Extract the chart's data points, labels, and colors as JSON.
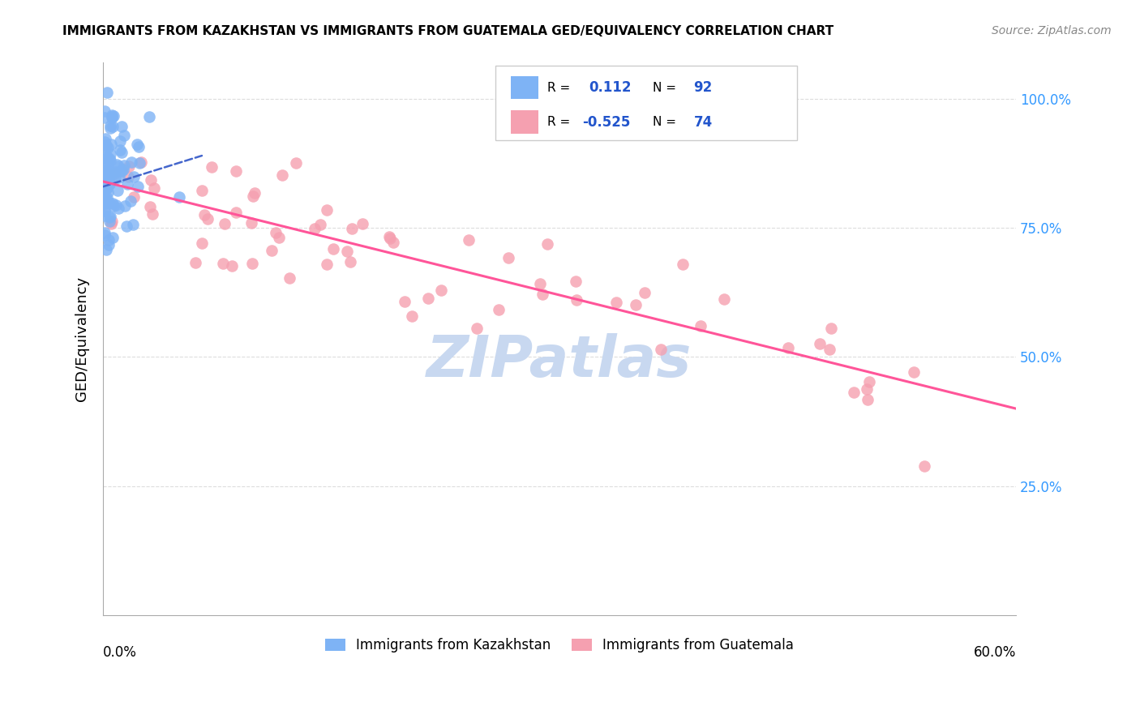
{
  "title": "IMMIGRANTS FROM KAZAKHSTAN VS IMMIGRANTS FROM GUATEMALA GED/EQUIVALENCY CORRELATION CHART",
  "source": "Source: ZipAtlas.com",
  "ylabel": "GED/Equivalency",
  "ytick_labels": [
    "100.0%",
    "75.0%",
    "50.0%",
    "25.0%"
  ],
  "ytick_values": [
    1.0,
    0.75,
    0.5,
    0.25
  ],
  "xlim": [
    0.0,
    0.6
  ],
  "ylim": [
    0.0,
    1.07
  ],
  "legend_label1": "Immigrants from Kazakhstan",
  "legend_label2": "Immigrants from Guatemala",
  "r1": 0.112,
  "n1": 92,
  "r2": -0.525,
  "n2": 74,
  "color_kaz": "#7EB3F5",
  "color_guat": "#F5A0B0",
  "trendline_color_kaz": "#4466CC",
  "trendline_color_guat": "#FF5599",
  "watermark": "ZIPatlas",
  "watermark_color": "#C8D8F0",
  "grid_color": "#DDDDDD",
  "spine_color": "#AAAAAA",
  "right_tick_color": "#3399FF",
  "title_fontsize": 11,
  "source_fontsize": 10,
  "kaz_trend_x0": 0.0,
  "kaz_trend_x1": 0.065,
  "kaz_trend_y0": 0.83,
  "kaz_trend_y1": 0.89,
  "guat_trend_x0": 0.0,
  "guat_trend_x1": 0.6,
  "guat_trend_y0": 0.84,
  "guat_trend_y1": 0.4
}
